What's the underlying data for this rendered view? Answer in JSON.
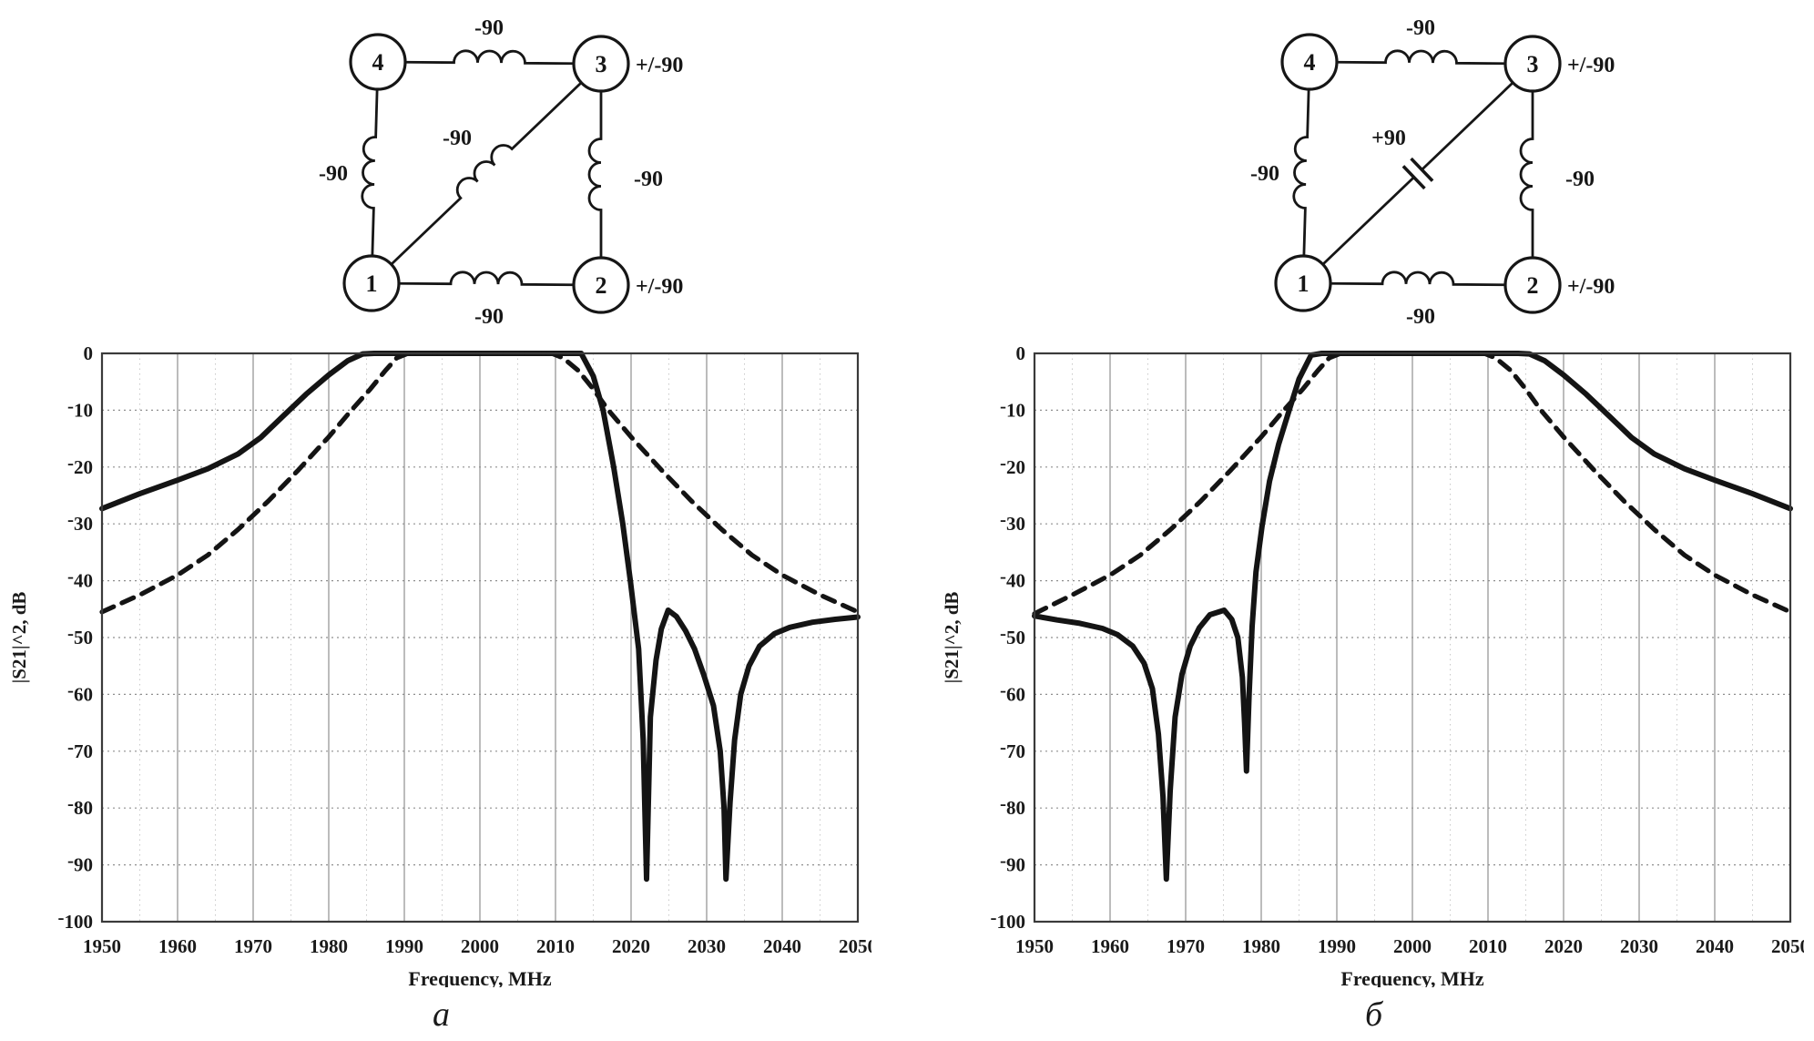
{
  "figure": {
    "panels": [
      {
        "id": "a",
        "caption": "a",
        "diagram": {
          "nodes": [
            {
              "id": "4",
              "label": "4"
            },
            {
              "id": "3",
              "label": "3"
            },
            {
              "id": "1",
              "label": "1"
            },
            {
              "id": "2",
              "label": "2"
            }
          ],
          "edges": [
            {
              "key": "top",
              "from": "4",
              "to": "3",
              "element": "inductor",
              "label": "-90"
            },
            {
              "key": "left",
              "from": "1",
              "to": "4",
              "element": "inductor",
              "label": "-90"
            },
            {
              "key": "right",
              "from": "2",
              "to": "3",
              "element": "inductor",
              "label": "-90"
            },
            {
              "key": "bottom",
              "from": "1",
              "to": "2",
              "element": "inductor",
              "label": "-90"
            },
            {
              "key": "diag",
              "from": "1",
              "to": "3",
              "element": "inductor",
              "label": "-90"
            }
          ],
          "port_labels": [
            {
              "node": "3",
              "text": "+/-90"
            },
            {
              "node": "2",
              "text": "+/-90"
            }
          ]
        }
      },
      {
        "id": "b",
        "caption": "б",
        "diagram": {
          "nodes": [
            {
              "id": "4",
              "label": "4"
            },
            {
              "id": "3",
              "label": "3"
            },
            {
              "id": "1",
              "label": "1"
            },
            {
              "id": "2",
              "label": "2"
            }
          ],
          "edges": [
            {
              "key": "top",
              "from": "4",
              "to": "3",
              "element": "inductor",
              "label": "-90"
            },
            {
              "key": "left",
              "from": "1",
              "to": "4",
              "element": "inductor",
              "label": "-90"
            },
            {
              "key": "right",
              "from": "2",
              "to": "3",
              "element": "inductor",
              "label": "-90"
            },
            {
              "key": "bottom",
              "from": "1",
              "to": "2",
              "element": "inductor",
              "label": "-90"
            },
            {
              "key": "diag",
              "from": "1",
              "to": "3",
              "element": "capacitor",
              "label": "+90"
            }
          ],
          "port_labels": [
            {
              "node": "3",
              "text": "+/-90"
            },
            {
              "node": "2",
              "text": "+/-90"
            }
          ]
        }
      }
    ]
  },
  "chart_data": [
    {
      "type": "line",
      "panel": "a",
      "title": "",
      "xlabel": "Frequency, MHz",
      "ylabel": "|S21|^2, dB",
      "xlim": [
        1950,
        2050
      ],
      "ylim": [
        -100,
        0
      ],
      "x_ticks": [
        1950,
        1960,
        1970,
        1980,
        1990,
        2000,
        2010,
        2020,
        2030,
        2040,
        2050
      ],
      "y_ticks": [
        0,
        -10,
        -20,
        -30,
        -40,
        -50,
        -60,
        -70,
        -80,
        -90,
        -100
      ],
      "grid": {
        "vertical_major_step": 10,
        "vertical_minor_step": 5,
        "horizontal_step": 10,
        "grid_on": true
      },
      "legend": "none",
      "transmission_zeros": [
        [
          2022.05,
          -92.5
        ],
        [
          2032.55,
          -92.5
        ]
      ],
      "series": [
        {
          "name": "solid curve (with cross coupling, zeros above passband)",
          "style": "solid",
          "points": [
            [
              1950,
              -27.3
            ],
            [
              1955,
              -24.7
            ],
            [
              1960,
              -22.3
            ],
            [
              1964,
              -20.3
            ],
            [
              1968,
              -17.7
            ],
            [
              1971,
              -14.8
            ],
            [
              1974,
              -11
            ],
            [
              1977,
              -7.2
            ],
            [
              1980,
              -3.8
            ],
            [
              1982.5,
              -1.3
            ],
            [
              1984.5,
              -0.1
            ],
            [
              1986,
              0
            ],
            [
              2013.4,
              0
            ],
            [
              2015,
              -4
            ],
            [
              2016.3,
              -10
            ],
            [
              2017.7,
              -20
            ],
            [
              2018.9,
              -30
            ],
            [
              2019.9,
              -40
            ],
            [
              2021,
              -52
            ],
            [
              2021.6,
              -68
            ],
            [
              2022.05,
              -92.5
            ],
            [
              2022.55,
              -64
            ],
            [
              2023.3,
              -54
            ],
            [
              2024,
              -48.5
            ],
            [
              2024.9,
              -45.2
            ],
            [
              2026,
              -46.3
            ],
            [
              2027.2,
              -48.8
            ],
            [
              2028.4,
              -52
            ],
            [
              2029.6,
              -56.5
            ],
            [
              2030.9,
              -62
            ],
            [
              2031.8,
              -70
            ],
            [
              2032.3,
              -80
            ],
            [
              2032.55,
              -92.5
            ],
            [
              2033.1,
              -79
            ],
            [
              2033.7,
              -68
            ],
            [
              2034.5,
              -60
            ],
            [
              2035.6,
              -55
            ],
            [
              2037,
              -51.5
            ],
            [
              2039,
              -49.3
            ],
            [
              2041,
              -48.2
            ],
            [
              2044,
              -47.3
            ],
            [
              2047,
              -46.8
            ],
            [
              2050,
              -46.4
            ]
          ]
        },
        {
          "name": "dashed curve (reference response, no zeros)",
          "style": "dashed",
          "points": [
            [
              1950,
              -45.5
            ],
            [
              1955,
              -42.5
            ],
            [
              1960,
              -39
            ],
            [
              1964,
              -35.5
            ],
            [
              1968,
              -31
            ],
            [
              1972,
              -26
            ],
            [
              1976,
              -20.5
            ],
            [
              1980,
              -14.7
            ],
            [
              1983,
              -10
            ],
            [
              1985.5,
              -6.3
            ],
            [
              1987.5,
              -3
            ],
            [
              1989,
              -0.8
            ],
            [
              1990.5,
              0
            ],
            [
              2009.5,
              0
            ],
            [
              2011,
              -0.8
            ],
            [
              2013,
              -3
            ],
            [
              2015,
              -6.3
            ],
            [
              2017,
              -10
            ],
            [
              2020,
              -14.7
            ],
            [
              2024,
              -20.5
            ],
            [
              2028,
              -26
            ],
            [
              2032,
              -31
            ],
            [
              2036,
              -35.5
            ],
            [
              2040,
              -39
            ],
            [
              2045,
              -42.5
            ],
            [
              2050,
              -45.5
            ]
          ]
        }
      ]
    },
    {
      "type": "line",
      "panel": "b",
      "title": "",
      "xlabel": "Frequency, MHz",
      "ylabel": "|S21|^2, dB",
      "xlim": [
        1950,
        2050
      ],
      "ylim": [
        -100,
        0
      ],
      "x_ticks": [
        1950,
        1960,
        1970,
        1980,
        1990,
        2000,
        2010,
        2020,
        2030,
        2040,
        2050
      ],
      "y_ticks": [
        0,
        -10,
        -20,
        -30,
        -40,
        -50,
        -60,
        -70,
        -80,
        -90,
        -100
      ],
      "grid": {
        "vertical_major_step": 10,
        "vertical_minor_step": 5,
        "horizontal_step": 10,
        "grid_on": true
      },
      "legend": "none",
      "transmission_zeros": [
        [
          1967.45,
          -92.5
        ],
        [
          1978.05,
          -73.5
        ]
      ],
      "series": [
        {
          "name": "solid curve (with cross coupling, zeros below passband)",
          "style": "solid",
          "points": [
            [
              1950,
              -46.2
            ],
            [
              1953,
              -46.9
            ],
            [
              1956,
              -47.5
            ],
            [
              1959,
              -48.4
            ],
            [
              1961,
              -49.5
            ],
            [
              1963,
              -51.5
            ],
            [
              1964.5,
              -54.5
            ],
            [
              1965.6,
              -59
            ],
            [
              1966.4,
              -67
            ],
            [
              1967,
              -78
            ],
            [
              1967.45,
              -92.5
            ],
            [
              1967.95,
              -77
            ],
            [
              1968.6,
              -64
            ],
            [
              1969.5,
              -56.5
            ],
            [
              1970.6,
              -51.5
            ],
            [
              1971.8,
              -48.3
            ],
            [
              1973.2,
              -46
            ],
            [
              1975.1,
              -45.2
            ],
            [
              1976.1,
              -46.8
            ],
            [
              1976.9,
              -50
            ],
            [
              1977.5,
              -57
            ],
            [
              1977.8,
              -65
            ],
            [
              1978.05,
              -73.5
            ],
            [
              1978.4,
              -60
            ],
            [
              1978.8,
              -48
            ],
            [
              1979.3,
              -38.5
            ],
            [
              1980.1,
              -30.5
            ],
            [
              1981.1,
              -22.5
            ],
            [
              1982.3,
              -16
            ],
            [
              1983.7,
              -10
            ],
            [
              1985,
              -4.5
            ],
            [
              1986.6,
              -0.3
            ],
            [
              1988,
              0
            ],
            [
              2014,
              0
            ],
            [
              2015.5,
              -0.1
            ],
            [
              2017.5,
              -1.3
            ],
            [
              2020,
              -3.8
            ],
            [
              2023,
              -7.2
            ],
            [
              2026,
              -11
            ],
            [
              2029,
              -14.8
            ],
            [
              2032,
              -17.7
            ],
            [
              2036,
              -20.3
            ],
            [
              2040,
              -22.3
            ],
            [
              2045,
              -24.7
            ],
            [
              2050,
              -27.3
            ]
          ]
        },
        {
          "name": "dashed curve (reference response, no zeros)",
          "style": "dashed",
          "points": [
            [
              1950,
              -45.8
            ],
            [
              1955,
              -42.5
            ],
            [
              1960,
              -39
            ],
            [
              1964,
              -35.5
            ],
            [
              1968,
              -31
            ],
            [
              1972,
              -26
            ],
            [
              1976,
              -20.5
            ],
            [
              1980,
              -14.7
            ],
            [
              1983,
              -10
            ],
            [
              1985.5,
              -6.3
            ],
            [
              1987.5,
              -3
            ],
            [
              1989,
              -0.8
            ],
            [
              1990.5,
              0
            ],
            [
              2009.5,
              0
            ],
            [
              2011,
              -0.8
            ],
            [
              2013,
              -3
            ],
            [
              2015,
              -6.3
            ],
            [
              2017,
              -10
            ],
            [
              2020,
              -14.7
            ],
            [
              2024,
              -20.5
            ],
            [
              2028,
              -26
            ],
            [
              2032,
              -31
            ],
            [
              2036,
              -35.5
            ],
            [
              2040,
              -39
            ],
            [
              2045,
              -42.5
            ],
            [
              2050,
              -45.5
            ]
          ]
        }
      ]
    }
  ]
}
